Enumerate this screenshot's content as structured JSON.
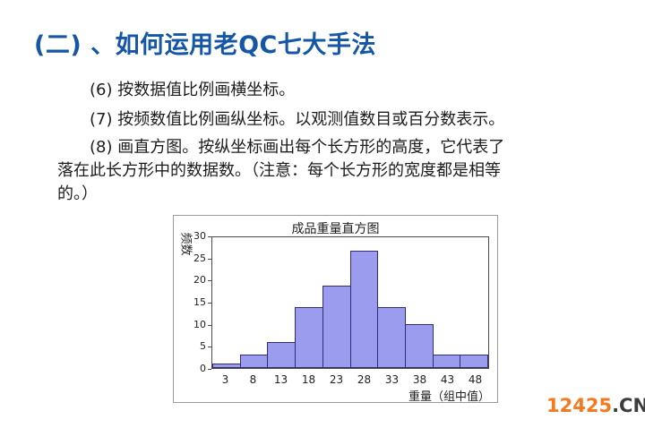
{
  "title": "(二) 、如何运用老QC七大手法",
  "steps": [
    "(6) 按数据值比例画横坐标。",
    "(7) 按频数值比例画纵坐标。以观测值数目或百分数表示。",
    "(8) 画直方图。按纵坐标画出每个长方形的高度，它代表了落在此长方形中的数据数。（注意：每个长方形的宽度都是相等的。）"
  ],
  "chart_data": {
    "type": "bar",
    "title": "成品重量直方图",
    "categories": [
      "3",
      "8",
      "13",
      "18",
      "23",
      "28",
      "33",
      "38",
      "43",
      "48"
    ],
    "values": [
      1,
      3,
      6,
      14,
      19,
      27,
      14,
      10,
      3,
      3
    ],
    "xlabel": "重量（组中值）",
    "ylabel": "频数",
    "ylim": [
      0,
      30
    ],
    "yticks": [
      0,
      5,
      10,
      15,
      20,
      25,
      30
    ],
    "grid": false,
    "legend_position": "none",
    "bar_color": "#9c9cef",
    "bar_border_color": "#2f2f70"
  },
  "watermark": {
    "primary": "12425",
    "suffix": ".CN",
    "primary_color": "#f4791f",
    "suffix_color": "#3c3c3c"
  },
  "colors": {
    "title_blue": "#1557a6",
    "body_text": "#1c1c1c"
  }
}
